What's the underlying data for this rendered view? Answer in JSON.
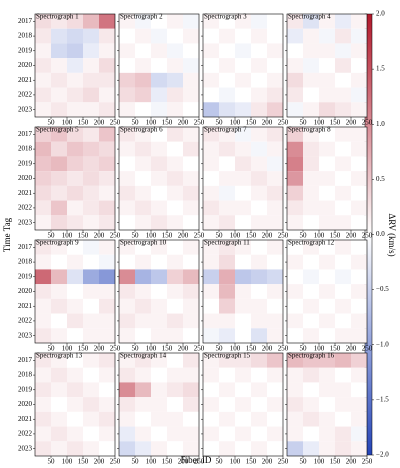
{
  "figure": {
    "ylabel": "Time Tag",
    "xlabel": "Fiber ID",
    "years": [
      "2017",
      "2018",
      "2019",
      "2020",
      "2021",
      "2022",
      "2023"
    ],
    "fiber_bins": [
      0,
      50,
      100,
      150,
      200,
      250
    ],
    "xlim": [
      0,
      250
    ],
    "xticks": [
      50,
      100,
      150,
      200,
      250
    ],
    "colorbar": {
      "label": "ΔRV (km/s)",
      "lim": [
        -2,
        2
      ],
      "ticks": [
        {
          "value": 2,
          "label": "2.0"
        },
        1.5,
        {
          "value": 1,
          "label": "1.0"
        },
        0.5,
        {
          "value": 0,
          "label": "0.0"
        },
        {
          "value": -0.5,
          "label": "−0.5"
        },
        {
          "value": -1,
          "label": "−1.0"
        },
        {
          "value": -1.5,
          "label": "−1.5"
        },
        {
          "value": -2,
          "label": "−2.0"
        }
      ],
      "colors": [
        "#2444b8",
        "#ffffff",
        "#b2182b"
      ]
    }
  },
  "chart_data": [
    {
      "type": "heatmap",
      "title": "Spectrograph 1",
      "values": [
        [
          0.3,
          0.2,
          0.3,
          0.6,
          1.2
        ],
        [
          0.2,
          -0.3,
          -0.4,
          -0.3,
          0.2
        ],
        [
          0.1,
          -0.4,
          -0.5,
          -0.2,
          0.1
        ],
        [
          0.2,
          0.1,
          -0.2,
          0.1,
          0.3
        ],
        [
          0.1,
          0.2,
          0.1,
          0.2,
          0.2
        ],
        [
          0.2,
          0.1,
          0.2,
          0.3,
          0.1
        ],
        [
          0.1,
          0.2,
          0.1,
          0.1,
          0.2
        ]
      ]
    },
    {
      "type": "heatmap",
      "title": "Spectrograph 2",
      "values": [
        [
          0.1,
          -0.1,
          0,
          0.1,
          -0.1
        ],
        [
          0,
          0.1,
          -0.1,
          0,
          0.1
        ],
        [
          0.1,
          0,
          0.1,
          -0.1,
          0
        ],
        [
          0,
          0.1,
          0,
          0.1,
          -0.1
        ],
        [
          0.4,
          0.5,
          -0.4,
          -0.3,
          0.1
        ],
        [
          0.3,
          0.4,
          -0.2,
          0.2,
          0.1
        ],
        [
          0.1,
          0,
          -0.1,
          0.1,
          0
        ]
      ]
    },
    {
      "type": "heatmap",
      "title": "Spectrograph 3",
      "values": [
        [
          0.1,
          0,
          0.1,
          -0.1,
          0
        ],
        [
          0,
          0.1,
          0,
          0.1,
          0
        ],
        [
          0.1,
          0,
          -0.1,
          0,
          0.1
        ],
        [
          0,
          0.1,
          0,
          0.1,
          0
        ],
        [
          0.1,
          0,
          0.1,
          0,
          0.1
        ],
        [
          0,
          -0.1,
          0,
          0.1,
          0.2
        ],
        [
          -0.6,
          -0.3,
          -0.2,
          0.2,
          0.4
        ]
      ]
    },
    {
      "type": "heatmap",
      "title": "Spectrograph 4",
      "values": [
        [
          0.2,
          -0.3,
          0.1,
          -0.2,
          0.1
        ],
        [
          -0.2,
          0.1,
          -0.1,
          0.2,
          -0.1
        ],
        [
          0,
          0.1,
          0.1,
          -0.1,
          0.1
        ],
        [
          0.1,
          -0.1,
          0,
          0.2,
          0
        ],
        [
          0.3,
          0.1,
          0.1,
          0,
          0.1
        ],
        [
          0.2,
          0,
          0.1,
          0.1,
          -0.1
        ],
        [
          -0.1,
          0.1,
          0.3,
          0.2,
          0.1
        ]
      ]
    },
    {
      "type": "heatmap",
      "title": "Spectrograph 5",
      "values": [
        [
          0.4,
          0.5,
          0.3,
          0.2,
          0.5
        ],
        [
          0.6,
          0.3,
          0.5,
          0.4,
          0.3
        ],
        [
          0.5,
          0.6,
          0.4,
          0.3,
          0.4
        ],
        [
          0.4,
          0.3,
          0.2,
          0.3,
          0.2
        ],
        [
          0.3,
          0.2,
          0.3,
          0.2,
          0.1
        ],
        [
          0.2,
          0.5,
          0.1,
          0.2,
          0.3
        ],
        [
          0.1,
          0.3,
          0.2,
          0.1,
          0.2
        ]
      ]
    },
    {
      "type": "heatmap",
      "title": "Spectrograph 6",
      "values": [
        [
          0.2,
          0.1,
          0,
          0.2,
          0.1
        ],
        [
          0.1,
          0.2,
          0.1,
          0,
          0.2
        ],
        [
          0,
          0.1,
          0.2,
          0.1,
          0
        ],
        [
          0.1,
          0,
          0.1,
          0.2,
          0.1
        ],
        [
          0.2,
          0.1,
          0,
          0.1,
          0.2
        ],
        [
          0.1,
          0.2,
          0.1,
          0,
          0.1
        ],
        [
          0,
          0.1,
          0.2,
          0.1,
          0
        ]
      ]
    },
    {
      "type": "heatmap",
      "title": "Spectrograph 7",
      "values": [
        [
          0.2,
          0.1,
          -0.1,
          0.1,
          0.2
        ],
        [
          0.1,
          0.2,
          0.1,
          -0.1,
          0.1
        ],
        [
          0.1,
          0,
          0.2,
          0.1,
          -0.1
        ],
        [
          0,
          0.1,
          0.1,
          0.2,
          0.1
        ],
        [
          0.1,
          -0.1,
          0,
          0.1,
          0.2
        ],
        [
          0.2,
          0.1,
          0.1,
          0,
          0.1
        ],
        [
          0.1,
          0.2,
          0,
          0.1,
          0.1
        ]
      ]
    },
    {
      "type": "heatmap",
      "title": "Spectrograph 8",
      "values": [
        [
          0.4,
          0.1,
          0,
          0.1,
          0.1
        ],
        [
          1.0,
          0.2,
          0.1,
          0,
          0.1
        ],
        [
          1.1,
          0.2,
          0,
          0.1,
          0
        ],
        [
          0.9,
          0.1,
          0.1,
          0,
          0.1
        ],
        [
          0.4,
          0.1,
          0,
          0.1,
          0
        ],
        [
          0.2,
          0.1,
          0.1,
          0,
          0.1
        ],
        [
          0.1,
          0,
          0.1,
          0.1,
          0
        ]
      ]
    },
    {
      "type": "heatmap",
      "title": "Spectrograph 9",
      "values": [
        [
          0.2,
          0.1,
          0,
          -0.1,
          0.1
        ],
        [
          0.1,
          0,
          0.1,
          0,
          -0.1
        ],
        [
          1.3,
          0.6,
          -0.3,
          -0.9,
          -1.1
        ],
        [
          0.2,
          0.1,
          0,
          0.1,
          0.1
        ],
        [
          0.1,
          0.2,
          0.1,
          0,
          0.2
        ],
        [
          0.1,
          0,
          0.2,
          0.1,
          0.1
        ],
        [
          0.2,
          0.1,
          0,
          0.1,
          0.1
        ]
      ]
    },
    {
      "type": "heatmap",
      "title": "Spectrograph 10",
      "values": [
        [
          0.1,
          0,
          0.1,
          0,
          0.1
        ],
        [
          0,
          0.1,
          0,
          0.1,
          0
        ],
        [
          1.0,
          -0.8,
          -0.6,
          0.4,
          0.6
        ],
        [
          0.2,
          0.1,
          0,
          0.1,
          0.2
        ],
        [
          0.1,
          0.2,
          0.1,
          0,
          0.1
        ],
        [
          0.2,
          0.1,
          0.1,
          0.2,
          0.1
        ],
        [
          0.1,
          0,
          0.1,
          0.1,
          0
        ]
      ]
    },
    {
      "type": "heatmap",
      "title": "Spectrograph 11",
      "values": [
        [
          0.1,
          0.2,
          0.1,
          0,
          0.1
        ],
        [
          0.1,
          0.3,
          0,
          0.1,
          0
        ],
        [
          -0.5,
          0.7,
          -0.6,
          -0.5,
          -0.4
        ],
        [
          0.1,
          0.6,
          0.1,
          0,
          0.1
        ],
        [
          0,
          0.4,
          0.1,
          0.1,
          0
        ],
        [
          0.1,
          0.1,
          0,
          0.1,
          0.1
        ],
        [
          -0.1,
          -0.2,
          0,
          -0.3,
          0.1
        ]
      ]
    },
    {
      "type": "heatmap",
      "title": "Spectrograph 12",
      "values": [
        [
          0,
          0.1,
          0,
          0.1,
          0
        ],
        [
          0.1,
          0,
          0.1,
          0,
          0.1
        ],
        [
          0,
          -0.1,
          0,
          -0.1,
          0
        ],
        [
          0.1,
          0,
          0.1,
          0,
          0.1
        ],
        [
          0,
          0.1,
          0,
          0.1,
          0
        ],
        [
          0.1,
          0,
          0.1,
          0,
          0.1
        ],
        [
          0,
          0.1,
          0,
          0.1,
          0.1
        ]
      ]
    },
    {
      "type": "heatmap",
      "title": "Spectrograph 13",
      "values": [
        [
          0.2,
          0.1,
          0,
          0.1,
          0.2
        ],
        [
          0.1,
          0.2,
          0.1,
          0,
          0.1
        ],
        [
          0.2,
          0.1,
          0.2,
          0.1,
          0
        ],
        [
          0.1,
          0,
          0.1,
          0.2,
          0.1
        ],
        [
          0.2,
          0.1,
          0,
          0.1,
          0.2
        ],
        [
          0.1,
          0.2,
          0.1,
          0,
          0.1
        ],
        [
          0.2,
          0.1,
          0.2,
          0.1,
          0
        ]
      ]
    },
    {
      "type": "heatmap",
      "title": "Spectrograph 14",
      "values": [
        [
          0.1,
          0.2,
          0.1,
          0,
          0.2
        ],
        [
          0.2,
          0.1,
          0,
          0.1,
          0.1
        ],
        [
          1.0,
          0.6,
          0.1,
          0.2,
          0.3
        ],
        [
          0.2,
          0.1,
          0.1,
          0,
          0.2
        ],
        [
          0.1,
          0,
          0.1,
          0.1,
          0
        ],
        [
          -0.2,
          0.1,
          0,
          0.1,
          0.1
        ],
        [
          -0.4,
          -0.2,
          0.1,
          0,
          0.1
        ]
      ]
    },
    {
      "type": "heatmap",
      "title": "Spectrograph 15",
      "values": [
        [
          0.1,
          0.2,
          0.2,
          0.3,
          0.5
        ],
        [
          0.1,
          0,
          0.1,
          0,
          0.1
        ],
        [
          0,
          0.1,
          0,
          0.1,
          0
        ],
        [
          0.1,
          0,
          0.1,
          0,
          0.1
        ],
        [
          0,
          0.1,
          0,
          0.1,
          0
        ],
        [
          0.1,
          0,
          0.1,
          0,
          0.1
        ],
        [
          0,
          0.1,
          0,
          0.1,
          0
        ]
      ]
    },
    {
      "type": "heatmap",
      "title": "Spectrograph 16",
      "values": [
        [
          0.6,
          0.5,
          0.5,
          0.6,
          0.4
        ],
        [
          0.1,
          0.2,
          0.1,
          0,
          0.1
        ],
        [
          0.1,
          0,
          0.1,
          0.1,
          0
        ],
        [
          0.2,
          0.1,
          0,
          0.1,
          0.1
        ],
        [
          0.1,
          0.2,
          0.1,
          0,
          0.1
        ],
        [
          0.1,
          0,
          0.1,
          0.2,
          -0.1
        ],
        [
          -0.5,
          -0.2,
          0.1,
          0.2,
          0.1
        ]
      ]
    }
  ]
}
